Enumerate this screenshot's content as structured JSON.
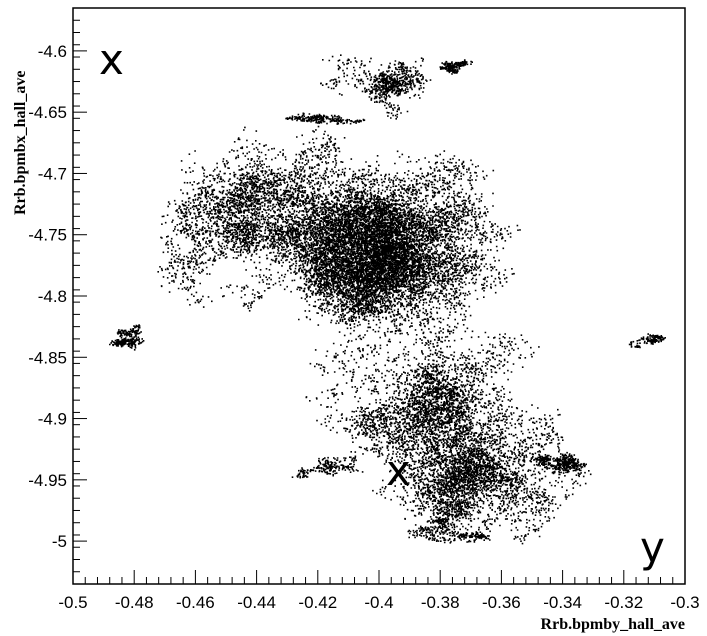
{
  "chart_data": {
    "type": "scatter",
    "title": "",
    "xlabel": "Rrb.bpmby_hall_ave",
    "ylabel": "Rrb.bpmbx_hall_ave",
    "xlim": [
      -0.5,
      -0.3
    ],
    "ylim": [
      -5.035,
      -4.565
    ],
    "grid": false,
    "x_ticks": [
      "-0.5",
      "-0.48",
      "-0.46",
      "-0.44",
      "-0.42",
      "-0.4",
      "-0.38",
      "-0.36",
      "-0.34",
      "-0.32",
      "-0.3"
    ],
    "y_ticks": [
      "-4.6",
      "-4.65",
      "-4.7",
      "-4.75",
      "-4.8",
      "-4.85",
      "-4.9",
      "-4.95",
      "-5"
    ],
    "point_color": "#000000",
    "clusters": [
      {
        "cx": -0.4,
        "cy": -4.775,
        "sx": 0.022,
        "sy": 0.04,
        "n": 9000
      },
      {
        "cx": -0.41,
        "cy": -4.74,
        "sx": 0.028,
        "sy": 0.035,
        "n": 4000
      },
      {
        "cx": -0.37,
        "cy": -4.95,
        "sx": 0.02,
        "sy": 0.03,
        "n": 3000
      },
      {
        "cx": -0.385,
        "cy": -4.89,
        "sx": 0.022,
        "sy": 0.04,
        "n": 3000
      },
      {
        "cx": -0.44,
        "cy": -4.72,
        "sx": 0.018,
        "sy": 0.035,
        "n": 1500
      },
      {
        "cx": -0.455,
        "cy": -4.76,
        "sx": 0.015,
        "sy": 0.03,
        "n": 700
      },
      {
        "cx": -0.4,
        "cy": -4.63,
        "sx": 0.012,
        "sy": 0.02,
        "n": 700
      },
      {
        "cx": -0.375,
        "cy": -4.61,
        "sx": 0.005,
        "sy": 0.008,
        "n": 200
      },
      {
        "cx": -0.48,
        "cy": -4.835,
        "sx": 0.006,
        "sy": 0.01,
        "n": 300
      },
      {
        "cx": -0.315,
        "cy": -4.84,
        "sx": 0.005,
        "sy": 0.006,
        "n": 150
      },
      {
        "cx": -0.34,
        "cy": -4.93,
        "sx": 0.008,
        "sy": 0.012,
        "n": 400
      },
      {
        "cx": -0.425,
        "cy": -4.655,
        "sx": 0.01,
        "sy": 0.006,
        "n": 250
      },
      {
        "cx": -0.42,
        "cy": -4.94,
        "sx": 0.012,
        "sy": 0.008,
        "n": 200
      },
      {
        "cx": -0.38,
        "cy": -4.99,
        "sx": 0.012,
        "sy": 0.01,
        "n": 300
      }
    ]
  },
  "overlay": {
    "top_left_letter": "x",
    "center_letter": "x",
    "bottom_right_letter": "y"
  }
}
